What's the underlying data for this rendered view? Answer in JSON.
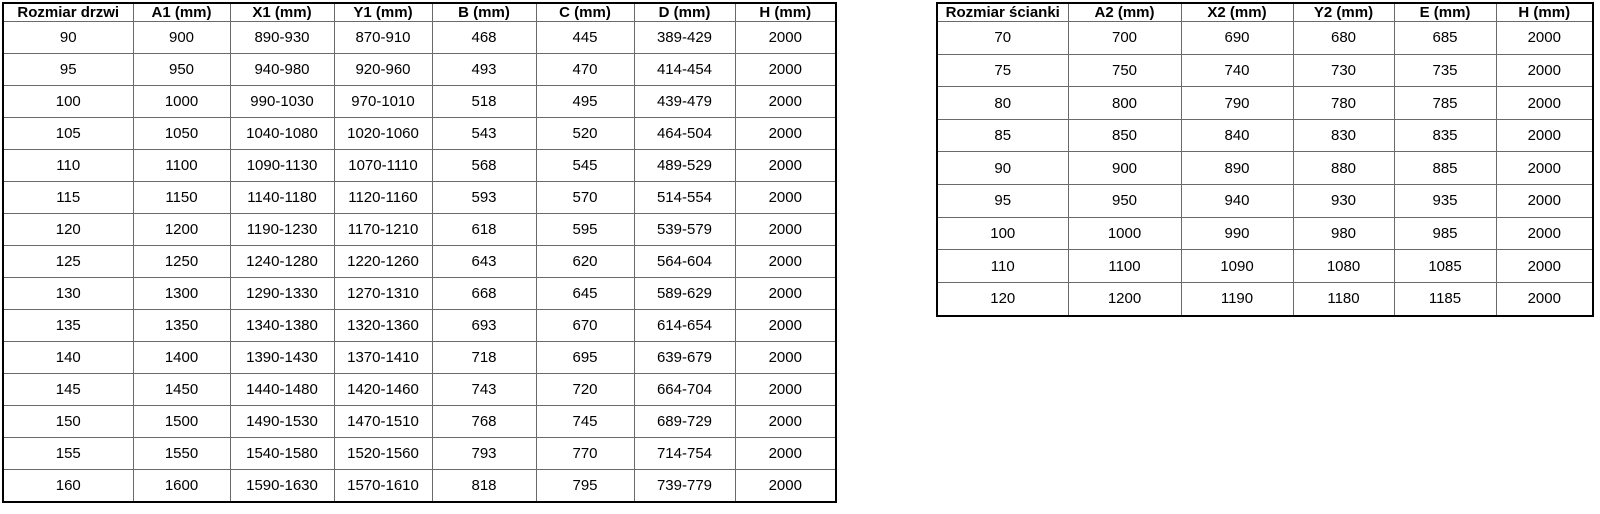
{
  "page": {
    "background": "#ffffff"
  },
  "colors": {
    "border_outer": "#000000",
    "border_inner": "#6a6a6a",
    "text": "#000000",
    "background": "#ffffff"
  },
  "tables": [
    {
      "name": "door-size-table",
      "headers": [
        "Rozmiar drzwi",
        "A1 (mm)",
        "X1 (mm)",
        "Y1 (mm)",
        "B (mm)",
        "C (mm)",
        "D (mm)",
        "H (mm)"
      ],
      "rows": [
        [
          "90",
          "900",
          "890-930",
          "870-910",
          "468",
          "445",
          "389-429",
          "2000"
        ],
        [
          "95",
          "950",
          "940-980",
          "920-960",
          "493",
          "470",
          "414-454",
          "2000"
        ],
        [
          "100",
          "1000",
          "990-1030",
          "970-1010",
          "518",
          "495",
          "439-479",
          "2000"
        ],
        [
          "105",
          "1050",
          "1040-1080",
          "1020-1060",
          "543",
          "520",
          "464-504",
          "2000"
        ],
        [
          "110",
          "1100",
          "1090-1130",
          "1070-1110",
          "568",
          "545",
          "489-529",
          "2000"
        ],
        [
          "115",
          "1150",
          "1140-1180",
          "1120-1160",
          "593",
          "570",
          "514-554",
          "2000"
        ],
        [
          "120",
          "1200",
          "1190-1230",
          "1170-1210",
          "618",
          "595",
          "539-579",
          "2000"
        ],
        [
          "125",
          "1250",
          "1240-1280",
          "1220-1260",
          "643",
          "620",
          "564-604",
          "2000"
        ],
        [
          "130",
          "1300",
          "1290-1330",
          "1270-1310",
          "668",
          "645",
          "589-629",
          "2000"
        ],
        [
          "135",
          "1350",
          "1340-1380",
          "1320-1360",
          "693",
          "670",
          "614-654",
          "2000"
        ],
        [
          "140",
          "1400",
          "1390-1430",
          "1370-1410",
          "718",
          "695",
          "639-679",
          "2000"
        ],
        [
          "145",
          "1450",
          "1440-1480",
          "1420-1460",
          "743",
          "720",
          "664-704",
          "2000"
        ],
        [
          "150",
          "1500",
          "1490-1530",
          "1470-1510",
          "768",
          "745",
          "689-729",
          "2000"
        ],
        [
          "155",
          "1550",
          "1540-1580",
          "1520-1560",
          "793",
          "770",
          "714-754",
          "2000"
        ],
        [
          "160",
          "1600",
          "1590-1630",
          "1570-1610",
          "818",
          "795",
          "739-779",
          "2000"
        ]
      ]
    },
    {
      "name": "wall-size-table",
      "headers": [
        "Rozmiar ścianki",
        "A2 (mm)",
        "X2 (mm)",
        "Y2 (mm)",
        "E (mm)",
        "H (mm)"
      ],
      "rows": [
        [
          "70",
          "700",
          "690",
          "680",
          "685",
          "2000"
        ],
        [
          "75",
          "750",
          "740",
          "730",
          "735",
          "2000"
        ],
        [
          "80",
          "800",
          "790",
          "780",
          "785",
          "2000"
        ],
        [
          "85",
          "850",
          "840",
          "830",
          "835",
          "2000"
        ],
        [
          "90",
          "900",
          "890",
          "880",
          "885",
          "2000"
        ],
        [
          "95",
          "950",
          "940",
          "930",
          "935",
          "2000"
        ],
        [
          "100",
          "1000",
          "990",
          "980",
          "985",
          "2000"
        ],
        [
          "110",
          "1100",
          "1090",
          "1080",
          "1085",
          "2000"
        ],
        [
          "120",
          "1200",
          "1190",
          "1180",
          "1185",
          "2000"
        ]
      ]
    }
  ]
}
